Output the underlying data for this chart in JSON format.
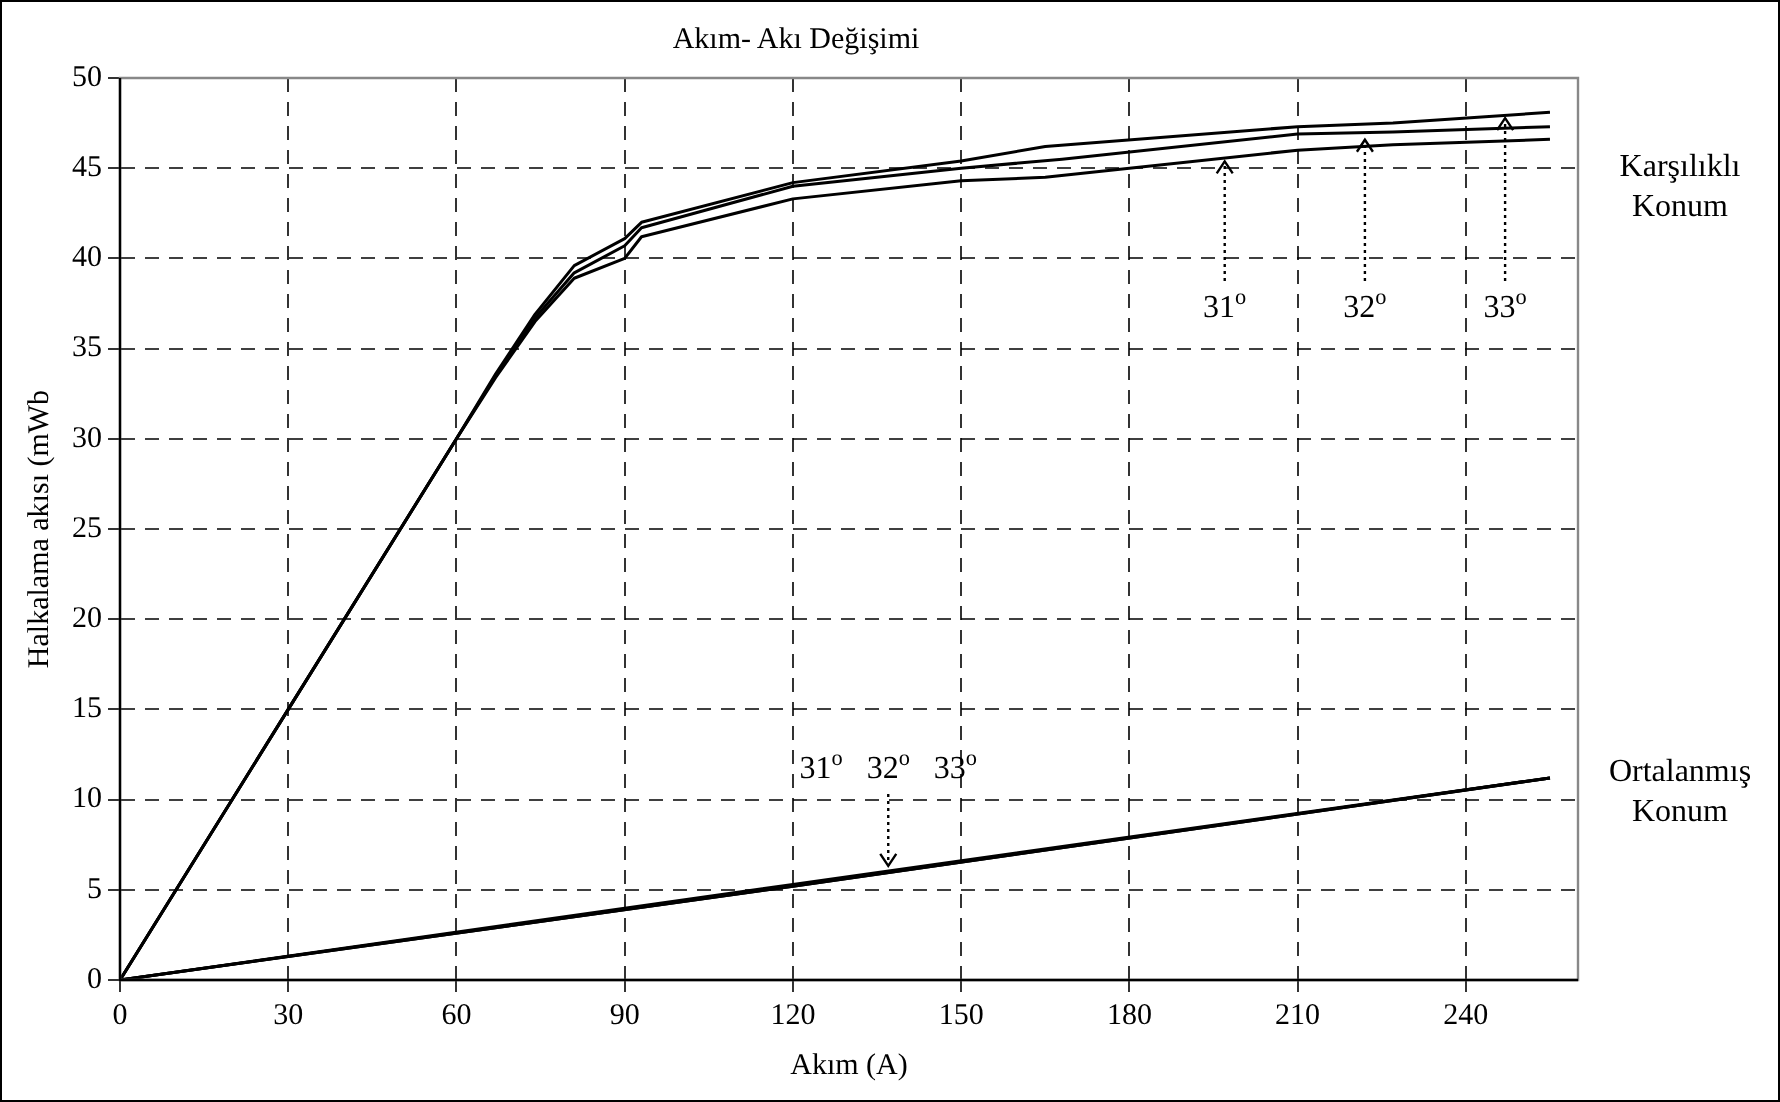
{
  "chart_data": {
    "type": "line",
    "title": "Akım- Akı Değişimi",
    "xlabel": "Akım (A)",
    "ylabel": "Halkalama akısı (mWb",
    "xlim": [
      0,
      260
    ],
    "xticks": [
      0,
      30,
      60,
      90,
      120,
      150,
      180,
      210,
      240
    ],
    "ylim": [
      0,
      50
    ],
    "yticks": [
      0,
      5,
      10,
      15,
      20,
      25,
      30,
      35,
      40,
      45,
      50
    ],
    "grid": true,
    "legend": false,
    "marker": "none",
    "line_style": "solid",
    "series": [
      {
        "color": "#000000",
        "x": [
          0,
          30,
          60,
          67,
          74,
          81,
          90,
          93,
          120,
          150,
          165,
          210,
          227,
          255
        ],
        "values": [
          0,
          15,
          30,
          33.6,
          36.9,
          39.6,
          41.1,
          42,
          44.2,
          45.4,
          46.2,
          47.3,
          47.5,
          48.1
        ]
      },
      {
        "color": "#000000",
        "x": [
          0,
          30,
          60,
          67,
          74,
          81,
          90,
          93,
          120,
          150,
          168,
          210,
          227,
          255
        ],
        "values": [
          0,
          15,
          30,
          33.5,
          36.7,
          39.2,
          40.7,
          41.7,
          44,
          45,
          45.5,
          46.9,
          47,
          47.3
        ]
      },
      {
        "color": "#000000",
        "x": [
          0,
          30,
          60,
          67,
          74,
          81,
          90,
          93,
          120,
          150,
          165,
          210,
          227,
          255
        ],
        "values": [
          0,
          15,
          30,
          33.4,
          36.5,
          38.9,
          40,
          41.2,
          43.3,
          44.3,
          44.5,
          46,
          46.3,
          46.6
        ]
      },
      {
        "color": "#000000",
        "x": [
          0,
          120,
          255
        ],
        "values": [
          0,
          5.3,
          11.2
        ]
      },
      {
        "color": "#000000",
        "x": [
          0,
          120,
          255
        ],
        "values": [
          0,
          5.2,
          11.2
        ]
      },
      {
        "color": "#000000",
        "x": [
          0,
          120,
          255
        ],
        "values": [
          0,
          5.2,
          11.2
        ]
      }
    ],
    "annotations": [
      {
        "text": "31$^{o}$",
        "x": 197,
        "y": 45.6
      },
      {
        "text": "32$^{o}$",
        "x": 222,
        "y": 46.8
      },
      {
        "text": "33$^{o}$",
        "x": 247,
        "y": 48
      },
      {
        "text": "31$^{o}$   32$^{o}$   33$^{o}$",
        "x": 137,
        "y": 6.1
      },
      "Karşılıklı Konum",
      "Ortalanmış Konum"
    ]
  }
}
